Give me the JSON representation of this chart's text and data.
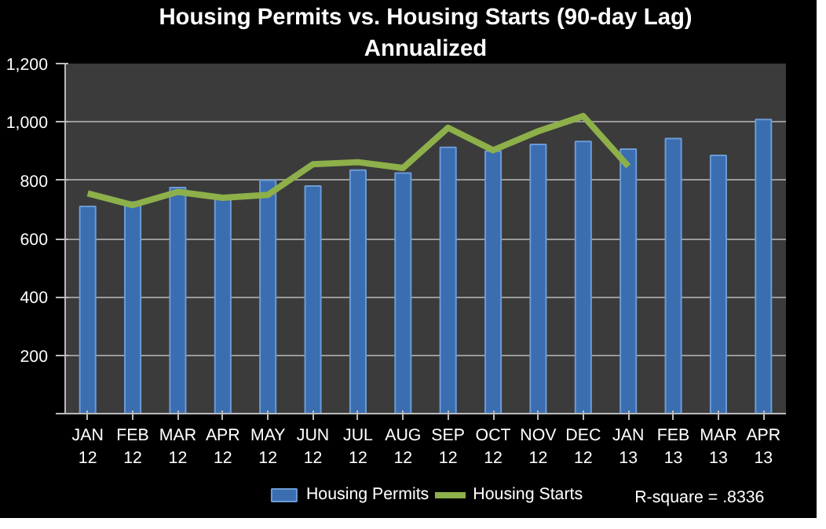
{
  "chart_data": {
    "type": "bar",
    "title": "Housing Permits vs. Housing Starts (90-day Lag)",
    "subtitle": "Annualized",
    "categories": [
      "JAN 12",
      "FEB 12",
      "MAR 12",
      "APR 12",
      "MAY 12",
      "JUN 12",
      "JUL 12",
      "AUG 12",
      "SEP 12",
      "OCT 12",
      "NOV 12",
      "DEC 12",
      "JAN 13",
      "FEB 13",
      "MAR 13",
      "APR 13"
    ],
    "series": [
      {
        "name": "Housing Permits",
        "type": "bar",
        "color": "#3a6eb0",
        "values": [
          710,
          725,
          775,
          735,
          800,
          780,
          835,
          825,
          913,
          900,
          923,
          933,
          907,
          943,
          885,
          1008
        ]
      },
      {
        "name": "Housing Starts",
        "type": "line",
        "color": "#8db04a",
        "values": [
          755,
          715,
          760,
          740,
          750,
          855,
          862,
          842,
          980,
          903,
          968,
          1020,
          848,
          null,
          null,
          null
        ]
      }
    ],
    "ylim": [
      0,
      1200
    ],
    "yticks": [
      {
        "value": 0,
        "label": null
      },
      200,
      400,
      600,
      800,
      {
        "value": 1000,
        "label": "1,000"
      },
      {
        "value": 1200,
        "label": "1,200"
      }
    ],
    "grid": "y",
    "legend": "bottom",
    "annotations": [
      "R-square = .8336"
    ]
  }
}
